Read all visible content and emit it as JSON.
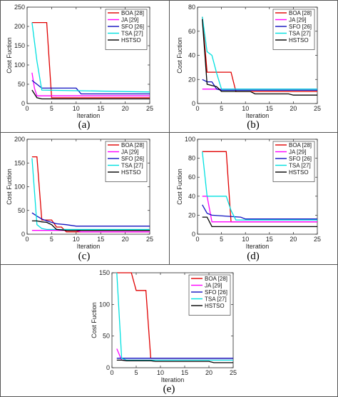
{
  "chart_data": [
    {
      "caption": "(a)",
      "type": "line",
      "xlabel": "Iteration",
      "ylabel": "Cost Fuction",
      "xlim": [
        0,
        25
      ],
      "ylim": [
        0,
        250
      ],
      "xticks": [
        0,
        5,
        10,
        15,
        20,
        25
      ],
      "yticks": [
        0,
        50,
        100,
        150,
        200,
        250
      ],
      "legend_position": "top-right",
      "series": [
        {
          "name": "BOA [28]",
          "color": "#e00000",
          "x": [
            1,
            4,
            5,
            25
          ],
          "y": [
            210,
            210,
            15,
            15
          ]
        },
        {
          "name": "JA [29]",
          "color": "#ff00ff",
          "x": [
            1,
            1.5,
            2,
            25
          ],
          "y": [
            80,
            40,
            20,
            20
          ]
        },
        {
          "name": "SFO [26]",
          "color": "#1010c0",
          "x": [
            1,
            2,
            3,
            10,
            11,
            25
          ],
          "y": [
            60,
            50,
            40,
            40,
            25,
            25
          ]
        },
        {
          "name": "TSA [27]",
          "color": "#00e0e0",
          "x": [
            1,
            2,
            3,
            25
          ],
          "y": [
            210,
            110,
            35,
            30
          ]
        },
        {
          "name": "HSTSO",
          "color": "#000000",
          "x": [
            1,
            2,
            3,
            25
          ],
          "y": [
            35,
            15,
            12,
            12
          ]
        }
      ]
    },
    {
      "caption": "(b)",
      "type": "line",
      "xlabel": "Iteration",
      "ylabel": "Cost Fuction",
      "xlim": [
        0,
        25
      ],
      "ylim": [
        0,
        80
      ],
      "xticks": [
        0,
        5,
        10,
        15,
        20,
        25
      ],
      "yticks": [
        0,
        20,
        40,
        60,
        80
      ],
      "legend_position": "top-right",
      "series": [
        {
          "name": "BOA [28]",
          "color": "#e00000",
          "x": [
            1,
            2,
            7,
            8,
            25
          ],
          "y": [
            72,
            26,
            26,
            10,
            10
          ]
        },
        {
          "name": "JA [29]",
          "color": "#ff00ff",
          "x": [
            1,
            25
          ],
          "y": [
            12,
            12
          ]
        },
        {
          "name": "SFO [26]",
          "color": "#1010c0",
          "x": [
            1,
            2,
            3,
            4,
            5,
            25
          ],
          "y": [
            20,
            18,
            18,
            12,
            11,
            11
          ]
        },
        {
          "name": "TSA [27]",
          "color": "#00e0e0",
          "x": [
            1,
            2,
            3,
            4,
            5,
            25
          ],
          "y": [
            72,
            43,
            40,
            25,
            12,
            12
          ]
        },
        {
          "name": "HSTSO",
          "color": "#000000",
          "x": [
            1,
            2,
            3,
            4,
            5,
            11,
            12,
            19,
            20,
            25
          ],
          "y": [
            70,
            16,
            15,
            14,
            10,
            10,
            8,
            8,
            7,
            7
          ]
        }
      ]
    },
    {
      "caption": "(c)",
      "type": "line",
      "xlabel": "Iteration",
      "ylabel": "Cost Fuction",
      "xlim": [
        0,
        25
      ],
      "ylim": [
        0,
        200
      ],
      "xticks": [
        0,
        5,
        10,
        15,
        20,
        25
      ],
      "yticks": [
        0,
        50,
        100,
        150,
        200
      ],
      "legend_position": "top-right",
      "series": [
        {
          "name": "BOA [28]",
          "color": "#e00000",
          "x": [
            1,
            2,
            3,
            5,
            6,
            7,
            8,
            25
          ],
          "y": [
            163,
            163,
            30,
            30,
            15,
            15,
            5,
            5
          ]
        },
        {
          "name": "JA [29]",
          "color": "#ff00ff",
          "x": [
            1,
            10,
            11,
            25
          ],
          "y": [
            8,
            8,
            5,
            5
          ]
        },
        {
          "name": "SFO [26]",
          "color": "#1010c0",
          "x": [
            1,
            2,
            3,
            4,
            5,
            6,
            8,
            10,
            25
          ],
          "y": [
            45,
            38,
            32,
            28,
            25,
            22,
            20,
            17,
            17
          ]
        },
        {
          "name": "TSA [27]",
          "color": "#00e0e0",
          "x": [
            1,
            2,
            3,
            4,
            10,
            25
          ],
          "y": [
            160,
            20,
            12,
            10,
            10,
            10
          ]
        },
        {
          "name": "HSTSO",
          "color": "#000000",
          "x": [
            1,
            2,
            3,
            4,
            5,
            6,
            8,
            25
          ],
          "y": [
            28,
            28,
            26,
            25,
            20,
            10,
            8,
            8
          ]
        }
      ]
    },
    {
      "caption": "(d)",
      "type": "line",
      "xlabel": "Iteration",
      "ylabel": "Cost Fuction",
      "xlim": [
        0,
        25
      ],
      "ylim": [
        0,
        100
      ],
      "xticks": [
        0,
        5,
        10,
        15,
        20,
        25
      ],
      "yticks": [
        0,
        20,
        40,
        60,
        80,
        100
      ],
      "legend_position": "top-right",
      "series": [
        {
          "name": "BOA [28]",
          "color": "#e00000",
          "x": [
            1,
            6,
            7,
            25
          ],
          "y": [
            87,
            87,
            13,
            13
          ]
        },
        {
          "name": "JA [29]",
          "color": "#ff00ff",
          "x": [
            1,
            2,
            3,
            25
          ],
          "y": [
            40,
            40,
            13,
            13
          ]
        },
        {
          "name": "SFO [26]",
          "color": "#1010c0",
          "x": [
            1,
            2,
            3,
            9,
            10,
            25
          ],
          "y": [
            31,
            22,
            20,
            18,
            16,
            16
          ]
        },
        {
          "name": "TSA [27]",
          "color": "#00e0e0",
          "x": [
            1,
            2,
            6,
            7,
            8,
            25
          ],
          "y": [
            87,
            40,
            40,
            25,
            15,
            15
          ]
        },
        {
          "name": "HSTSO",
          "color": "#000000",
          "x": [
            1,
            2,
            3,
            25
          ],
          "y": [
            18,
            18,
            8,
            8
          ]
        }
      ]
    },
    {
      "caption": "(e)",
      "type": "line",
      "xlabel": "Iteration",
      "ylabel": "Cost Fuction",
      "xlim": [
        0,
        25
      ],
      "ylim": [
        0,
        150
      ],
      "xticks": [
        0,
        5,
        10,
        15,
        20,
        25
      ],
      "yticks": [
        0,
        50,
        100,
        150
      ],
      "legend_position": "top-right",
      "series": [
        {
          "name": "BOA [28]",
          "color": "#e00000",
          "x": [
            1,
            4,
            5,
            7,
            8,
            25
          ],
          "y": [
            155,
            155,
            122,
            122,
            15,
            15
          ]
        },
        {
          "name": "JA [29]",
          "color": "#ff00ff",
          "x": [
            1,
            2,
            25
          ],
          "y": [
            30,
            12,
            12
          ]
        },
        {
          "name": "SFO [26]",
          "color": "#1010c0",
          "x": [
            1,
            2,
            25
          ],
          "y": [
            15,
            15,
            15
          ]
        },
        {
          "name": "TSA [27]",
          "color": "#00e0e0",
          "x": [
            1,
            2,
            3,
            25
          ],
          "y": [
            155,
            15,
            12,
            12
          ]
        },
        {
          "name": "HSTSO",
          "color": "#000000",
          "x": [
            1,
            2,
            3,
            8,
            9,
            20,
            21,
            25
          ],
          "y": [
            12,
            12,
            11,
            11,
            10,
            10,
            8,
            8
          ]
        }
      ]
    }
  ]
}
